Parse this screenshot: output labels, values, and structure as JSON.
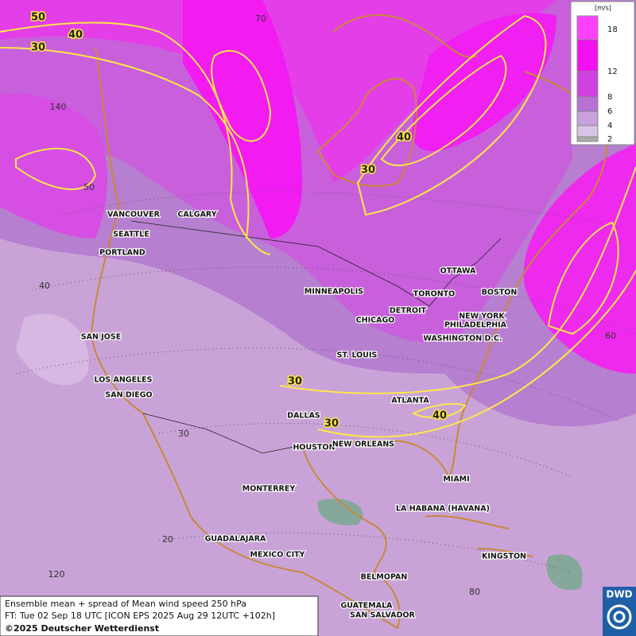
{
  "map": {
    "legend": {
      "unit": "[m/s]",
      "labels": [
        18,
        12,
        8,
        6,
        4,
        2
      ]
    },
    "cities": [
      "VANCOUVER",
      "CALGARY",
      "SEATTLE",
      "PORTLAND",
      "MINNEAPOLIS",
      "OTTAWA",
      "TORONTO",
      "BOSTON",
      "DETROIT",
      "CHICAGO",
      "NEW YORK",
      "PHILADELPHIA",
      "WASHINGTON D.C.",
      "SAN JOSE",
      "ST. LOUIS",
      "LOS ANGELES",
      "SAN DIEGO",
      "ATLANTA",
      "DALLAS",
      "HOUSTON",
      "NEW ORLEANS",
      "MIAMI",
      "MONTERREY",
      "LA HABANA (HAVANA)",
      "GUADALAJARA",
      "MEXICO CITY",
      "KINGSTON",
      "BELMOPAN",
      "GUATEMALA",
      "SAN SALVADOR"
    ],
    "contour_labels": [
      50,
      40,
      30,
      40,
      30,
      30,
      30,
      40
    ],
    "grid_labels": [
      70,
      140,
      50,
      40,
      60,
      30,
      20,
      120,
      80
    ]
  },
  "caption": {
    "lines": [
      "Ensemble mean + spread of Mean wind speed 250 hPa",
      "FT: Tue 02 Sep 18 UTC [ICON EPS 2025 Aug 29 12UTC +102h]",
      "©2025 Deutscher Wetterdienst"
    ]
  },
  "logo": "DWD"
}
